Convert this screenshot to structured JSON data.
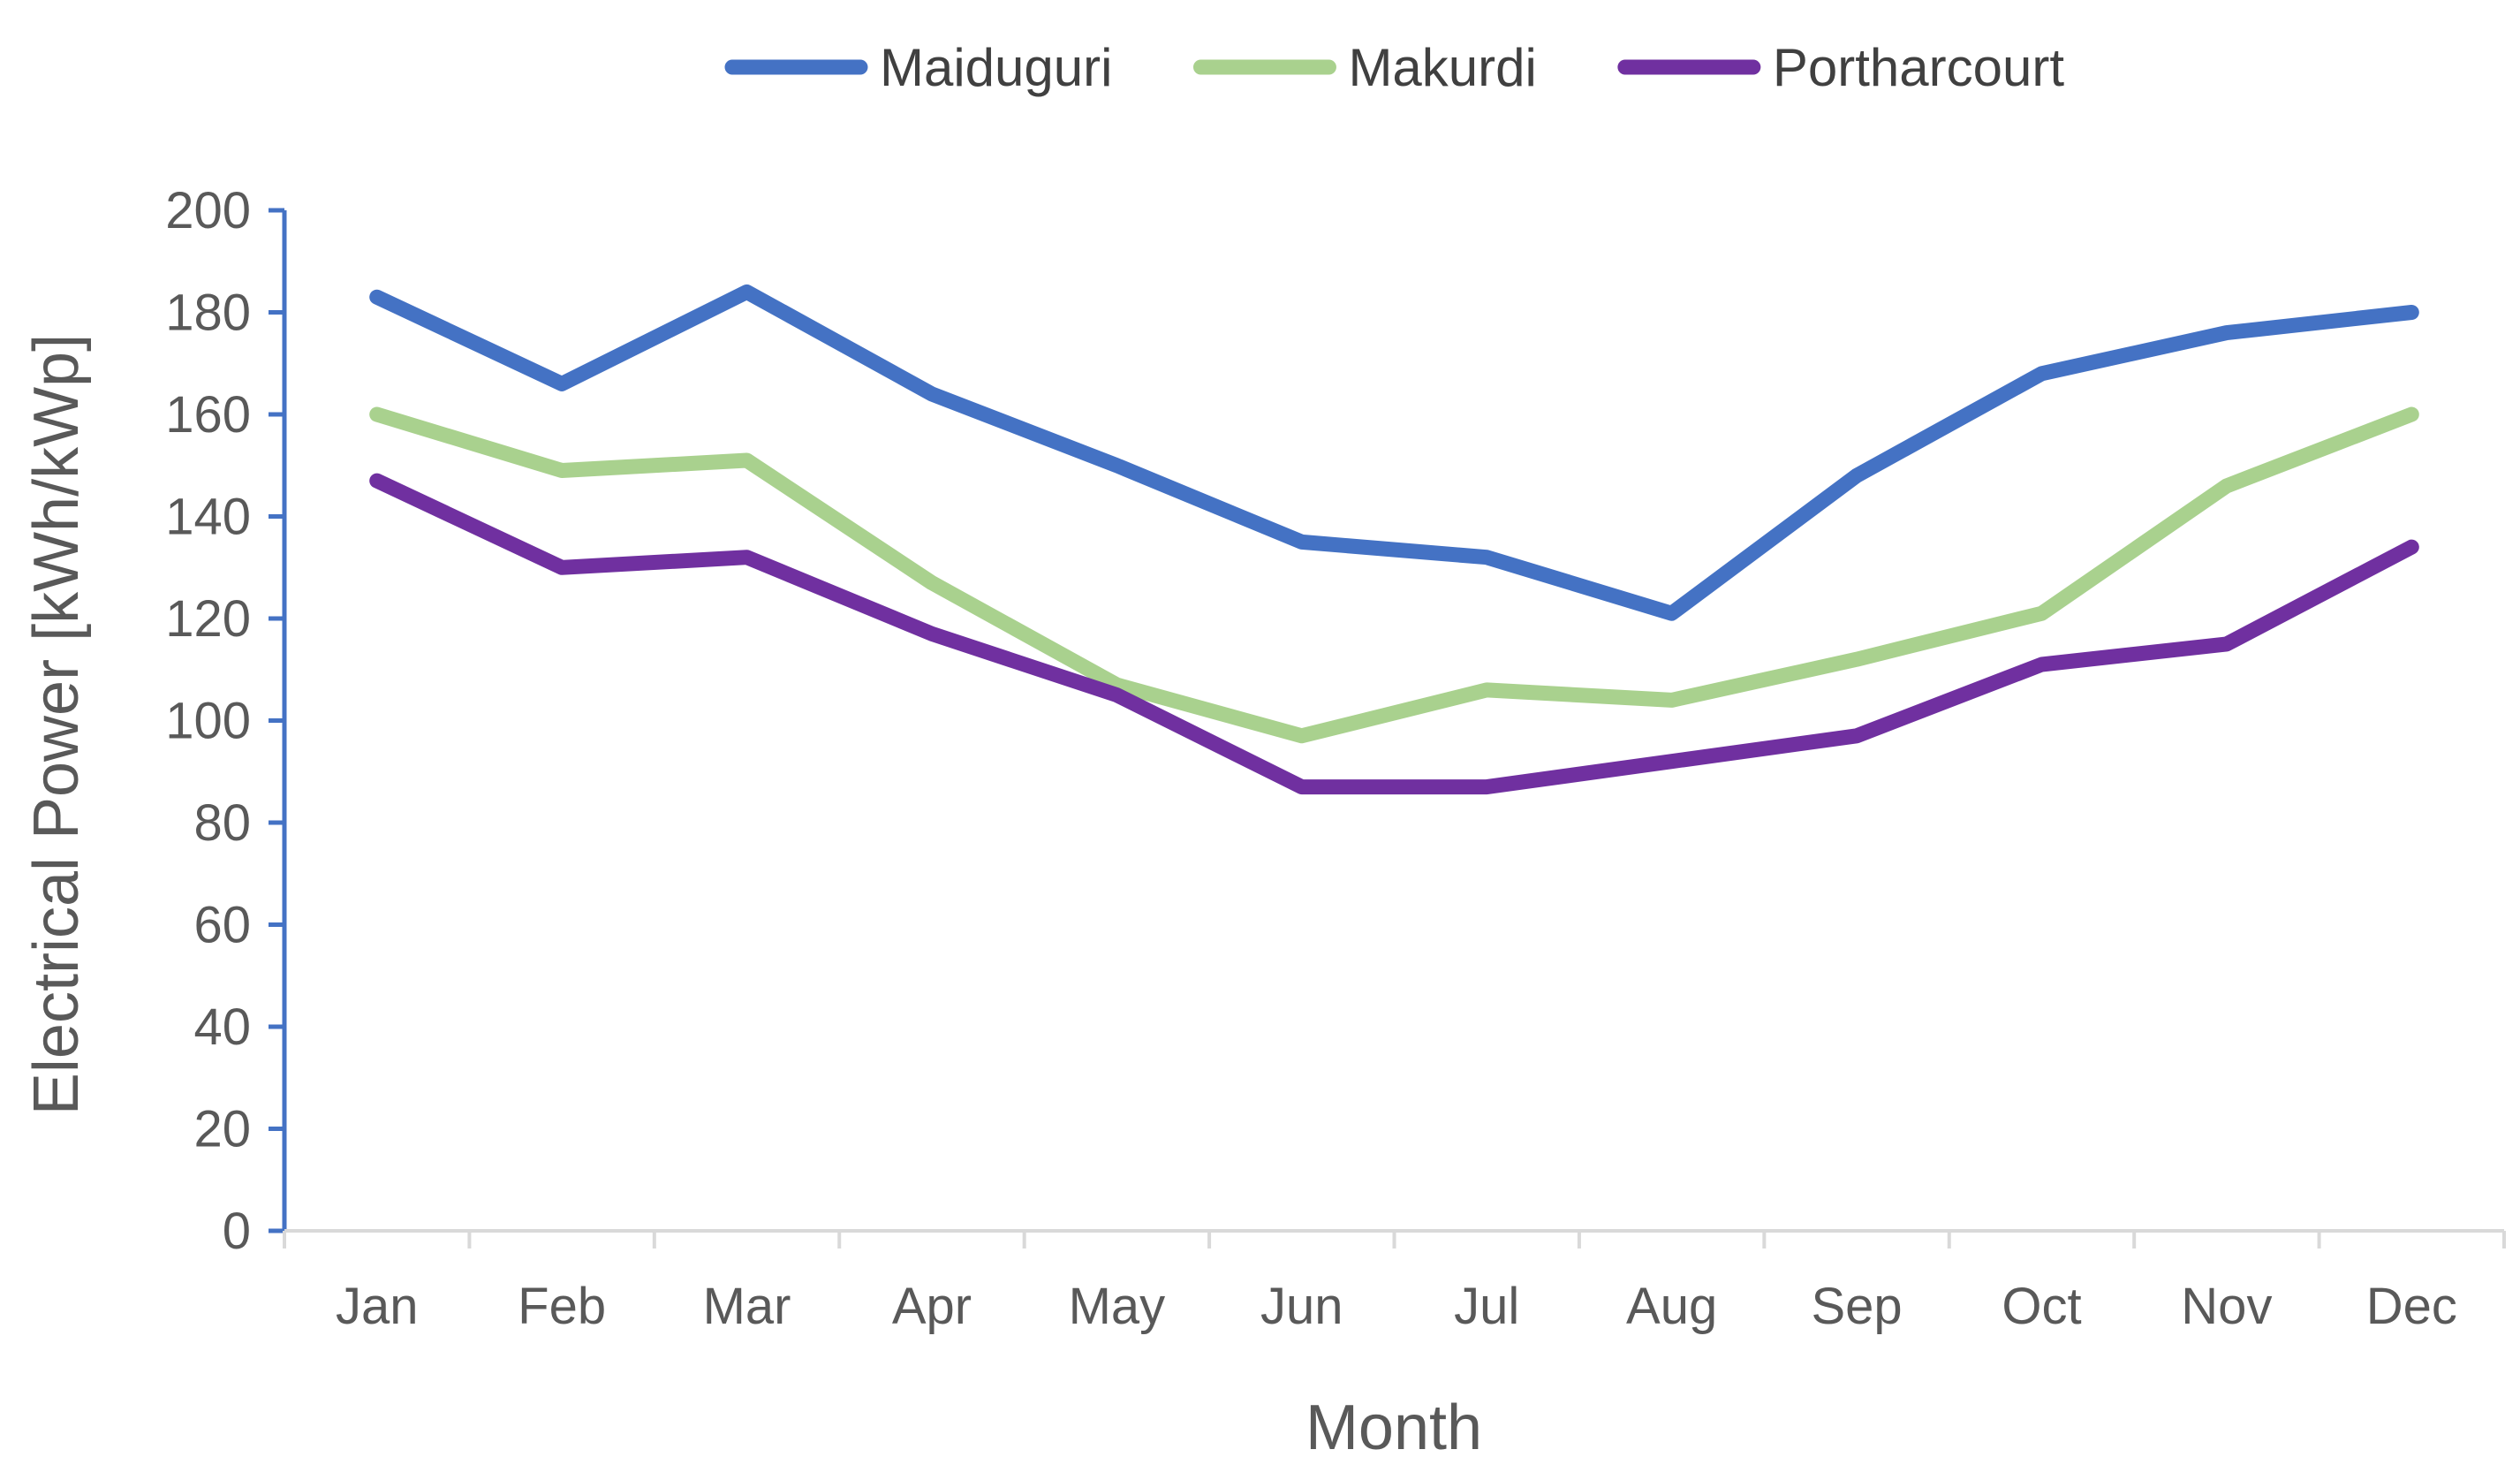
{
  "chart_data": {
    "type": "line",
    "title": "",
    "xlabel": "Month",
    "ylabel": "Electrical Power [kWh/kWp]",
    "categories": [
      "Jan",
      "Feb",
      "Mar",
      "Apr",
      "May",
      "Jun",
      "Jul",
      "Aug",
      "Sep",
      "Oct",
      "Nov",
      "Dec"
    ],
    "ylim": [
      0,
      200
    ],
    "yticks": [
      "0",
      "20",
      "40",
      "60",
      "80",
      "100",
      "120",
      "140",
      "160",
      "180",
      "200"
    ],
    "grid": false,
    "legend_position": "top",
    "axis_color": "#4472C4",
    "series": [
      {
        "name": "Maiduguri",
        "color": "#4472C4",
        "values": [
          183,
          166,
          184,
          164,
          150,
          135,
          132,
          121,
          148,
          168,
          176,
          180
        ]
      },
      {
        "name": "Makurdi",
        "color": "#A9D18E",
        "values": [
          160,
          149,
          151,
          127,
          107,
          97,
          106,
          104,
          112,
          121,
          146,
          160
        ]
      },
      {
        "name": "Portharcourt",
        "color": "#7030A0",
        "values": [
          147,
          130,
          132,
          117,
          105,
          87,
          87,
          92,
          97,
          111,
          115,
          134
        ]
      }
    ]
  }
}
